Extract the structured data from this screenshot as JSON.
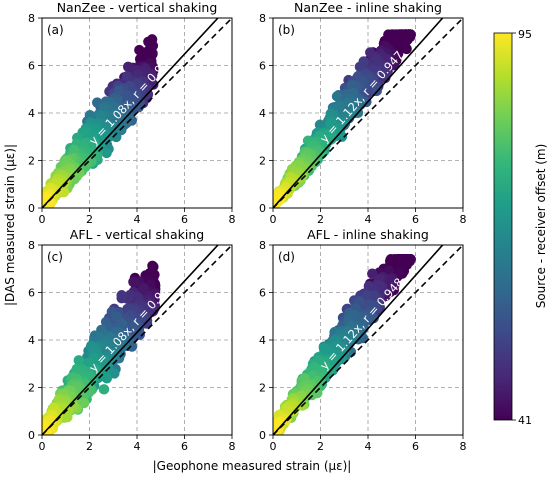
{
  "figure": {
    "xlabel": "|Geophone measured strain (με)|",
    "ylabel": "|DAS measured strain (με)|",
    "colorbar": {
      "label": "Source - receiver offset (m)",
      "min_label": "41",
      "max_label": "95",
      "colormap": "viridis",
      "stops": [
        "#440154",
        "#482878",
        "#3e4989",
        "#31688e",
        "#26828e",
        "#1f9e89",
        "#35b779",
        "#6ece58",
        "#b5de2b",
        "#fde725"
      ]
    }
  },
  "chart_data": [
    {
      "type": "scatter",
      "panel": "(a)",
      "title": "NanZee - vertical shaking",
      "xlim": [
        0,
        8
      ],
      "ylim": [
        0,
        8
      ],
      "xticks": [
        "0",
        "2",
        "4",
        "6",
        "8"
      ],
      "yticks": [
        "0",
        "2",
        "4",
        "6",
        "8"
      ],
      "grid": true,
      "fit": {
        "slope": 1.08,
        "r": 0.959,
        "label": "y = 1.08x,  r = 0.959"
      },
      "reference_line": {
        "slope": 1.0,
        "style": "dashed"
      },
      "cloud": {
        "x_max": 4.7,
        "y_max": 7.1,
        "spread": 1.1
      }
    },
    {
      "type": "scatter",
      "panel": "(b)",
      "title": "NanZee - inline shaking",
      "xlim": [
        0,
        8
      ],
      "ylim": [
        0,
        8
      ],
      "xticks": [
        "0",
        "2",
        "4",
        "6",
        "8"
      ],
      "yticks": [
        "0",
        "2",
        "4",
        "6",
        "8"
      ],
      "grid": true,
      "fit": {
        "slope": 1.12,
        "r": 0.947,
        "label": "y = 1.12x,  r = 0.947"
      },
      "reference_line": {
        "slope": 1.0,
        "style": "dashed"
      },
      "cloud": {
        "x_max": 5.8,
        "y_max": 7.3,
        "spread": 0.9
      }
    },
    {
      "type": "scatter",
      "panel": "(c)",
      "title": "AFL - vertical shaking",
      "xlim": [
        0,
        8
      ],
      "ylim": [
        0,
        8
      ],
      "xticks": [
        "0",
        "2",
        "4",
        "6",
        "8"
      ],
      "yticks": [
        "0",
        "2",
        "4",
        "6",
        "8"
      ],
      "grid": true,
      "fit": {
        "slope": 1.08,
        "r": 0.96,
        "label": "y = 1.08x,  r = 0.960"
      },
      "reference_line": {
        "slope": 1.0,
        "style": "dashed"
      },
      "cloud": {
        "x_max": 4.8,
        "y_max": 7.2,
        "spread": 1.2
      }
    },
    {
      "type": "scatter",
      "panel": "(d)",
      "title": "AFL - inline shaking",
      "xlim": [
        0,
        8
      ],
      "ylim": [
        0,
        8
      ],
      "xticks": [
        "0",
        "2",
        "4",
        "6",
        "8"
      ],
      "yticks": [
        "0",
        "2",
        "4",
        "6",
        "8"
      ],
      "grid": true,
      "fit": {
        "slope": 1.12,
        "r": 0.948,
        "label": "y = 1.12x,  r = 0.948"
      },
      "reference_line": {
        "slope": 1.0,
        "style": "dashed"
      },
      "cloud": {
        "x_max": 5.8,
        "y_max": 7.4,
        "spread": 0.9
      }
    }
  ]
}
